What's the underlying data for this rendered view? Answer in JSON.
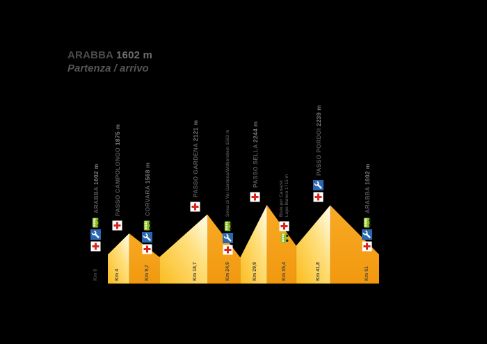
{
  "title": {
    "name": "ARABBA",
    "elevation": "1602 m",
    "subtitle": "Partenza / arrivo"
  },
  "colors": {
    "background": "#000000",
    "climb_top": "#FFFDF2",
    "climb_mid": "#FFE07E",
    "climb_base": "#FBBC1F",
    "descent_top": "#F9AA25",
    "descent_bottom": "#F1980F",
    "medical_red": "#D9261C",
    "service_blue": "#2B66B1",
    "bus_green": "#8CBF21",
    "text_gray": "#595959",
    "km_text": "#4d4839"
  },
  "icons_legend": {
    "medical": "first-aid-cross",
    "service": "bike-service-wrench",
    "bus": "shuttle-bus"
  },
  "chart_data": {
    "type": "area",
    "title": "ARABBA 1602 m — Partenza / arrivo",
    "xlabel": "Km",
    "ylabel": "elevation (m)",
    "x_range_km": [
      0,
      51
    ],
    "baseline_elevation_m": 1225,
    "grid": false,
    "legend_position": "none",
    "points": [
      {
        "km": 0,
        "elevation_m": 1602,
        "name": "ARABBA",
        "ele_label": "1602 m",
        "style": "pass",
        "icons": [
          "medical",
          "service",
          "bus"
        ],
        "km_label": "Km 0"
      },
      {
        "km": 4,
        "elevation_m": 1875,
        "name": "PASSO CAMPOLONGO",
        "ele_label": "1875 m",
        "style": "pass",
        "icons": [
          "medical"
        ],
        "km_label": "Km 4"
      },
      {
        "km": 9.7,
        "elevation_m": 1568,
        "name": "CORVARA",
        "ele_label": "1568 m",
        "style": "pass",
        "icons": [
          "medical",
          "service",
          "bus"
        ],
        "km_label": "Km 9,7"
      },
      {
        "km": 18.7,
        "elevation_m": 2121,
        "name": "PASSO GARDENA",
        "ele_label": "2121 m",
        "style": "pass",
        "icons": [
          "medical"
        ],
        "km_label": "Km 18,7"
      },
      {
        "km": 24.9,
        "elevation_m": 1563,
        "name": "Selva di Val Gardena/Wolkenstein",
        "ele_label": "1563 m",
        "style": "town",
        "icons": [
          "medical",
          "service",
          "bus"
        ],
        "km_label": "Km 24,9"
      },
      {
        "km": 29.9,
        "elevation_m": 2244,
        "name": "PASSO SELLA",
        "ele_label": "2244 m",
        "style": "pass",
        "icons": [
          "medical"
        ],
        "km_label": "Km 29,9"
      },
      {
        "km": 35.4,
        "elevation_m": 1715,
        "name": "Bivio per Canazei/Lupo Bianco",
        "lines": [
          "Bivio per Canazei",
          "Lupo Bianco"
        ],
        "ele_label": "1715 m",
        "style": "town",
        "icons": [
          "bus",
          "medical"
        ],
        "km_label": "Km 35,4"
      },
      {
        "km": 41.8,
        "elevation_m": 2239,
        "name": "PASSO PORDOI",
        "ele_label": "2239 m",
        "style": "pass",
        "icons": [
          "medical",
          "service"
        ],
        "km_label": "Km 41,8"
      },
      {
        "km": 51,
        "elevation_m": 1602,
        "name": "ARABBA",
        "ele_label": "1602 m",
        "style": "pass",
        "icons": [
          "medical",
          "service",
          "bus"
        ],
        "km_label": "Km 51"
      }
    ]
  }
}
